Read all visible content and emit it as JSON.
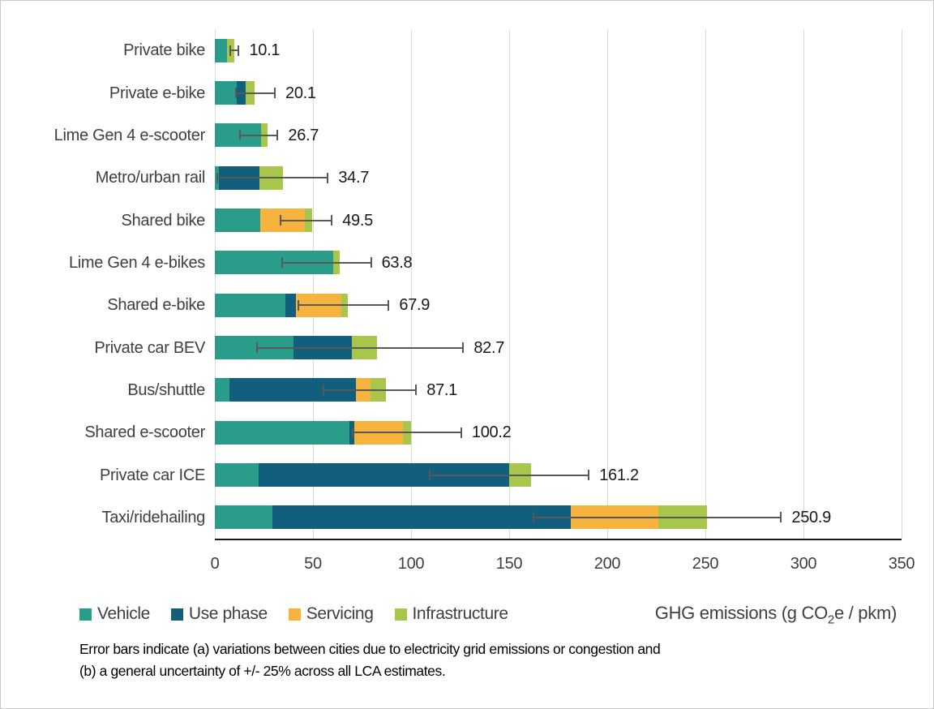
{
  "chart_data": {
    "type": "bar",
    "subtype": "horizontal-stacked",
    "xlabel_parts": {
      "prefix": "GHG emissions (g CO",
      "sub": "2",
      "suffix": "e / pkm)"
    },
    "xlim": [
      0,
      350
    ],
    "xticks": [
      0,
      50,
      100,
      150,
      200,
      250,
      300,
      350
    ],
    "grid": "vertical-major",
    "legend_position": "bottom-left",
    "categories": [
      "Private bike",
      "Private e-bike",
      "Lime Gen 4 e-scooter",
      "Metro/urban rail",
      "Shared bike",
      "Lime Gen 4 e-bikes",
      "Shared e-bike",
      "Private car BEV",
      "Bus/shuttle",
      "Shared e-scooter",
      "Private car ICE",
      "Taxi/ridehailing"
    ],
    "series": [
      {
        "name": "Vehicle",
        "color": "#2a9d8a",
        "values": [
          6.0,
          11.0,
          23.5,
          2.0,
          23.0,
          60.5,
          36.0,
          40.0,
          7.5,
          68.5,
          22.4,
          29.5
        ]
      },
      {
        "name": "Use phase",
        "color": "#115e7d",
        "values": [
          0,
          4.7,
          0,
          20.8,
          0,
          0,
          5.5,
          30.0,
          64.5,
          2.5,
          127.6,
          152.0
        ]
      },
      {
        "name": "Servicing",
        "color": "#f6b33d",
        "values": [
          0,
          0,
          0,
          0,
          23.0,
          0,
          23.0,
          0,
          7.3,
          25.0,
          0,
          44.5
        ]
      },
      {
        "name": "Infrastructure",
        "color": "#a7c64b",
        "values": [
          4.1,
          4.4,
          3.2,
          11.9,
          3.5,
          3.3,
          3.4,
          12.7,
          7.8,
          4.2,
          11.2,
          24.9
        ]
      }
    ],
    "totals": [
      10.1,
      20.1,
      26.7,
      34.7,
      49.5,
      63.8,
      67.9,
      82.7,
      87.1,
      100.2,
      161.2,
      250.9
    ],
    "total_labels": [
      "10.1",
      "20.1",
      "26.7",
      "34.7",
      "49.5",
      "63.8",
      "67.9",
      "82.7",
      "87.1",
      "100.2",
      "161.2",
      "250.9"
    ],
    "error_bars": [
      [
        7.6,
        12.6
      ],
      [
        10.5,
        31.0
      ],
      [
        12.4,
        32.4
      ],
      [
        1.0,
        58.0
      ],
      [
        33.0,
        60.0
      ],
      [
        34.0,
        80.0
      ],
      [
        42.0,
        89.0
      ],
      [
        21.0,
        127.0
      ],
      [
        55.0,
        103.0
      ],
      [
        70.0,
        126.0
      ],
      [
        109.0,
        191.0
      ],
      [
        162.0,
        289.0
      ]
    ]
  },
  "axis_title": {
    "prefix": "GHG emissions (g CO",
    "sub": "2",
    "suffix": "e / pkm)"
  },
  "footnote": {
    "line1": "Error bars indicate (a) variations between cities due to electricity grid emissions or congestion and",
    "line2": "(b) a general uncertainty of +/- 25% across all LCA estimates."
  },
  "colors": {
    "gridline": "#d9d9d9",
    "axis_line": "#1a1a1a",
    "error_bar": "#595959",
    "text_dark": "#1a1a1a",
    "text_gray": "#3f3f3f",
    "frame_border": "#c9c9c9"
  }
}
